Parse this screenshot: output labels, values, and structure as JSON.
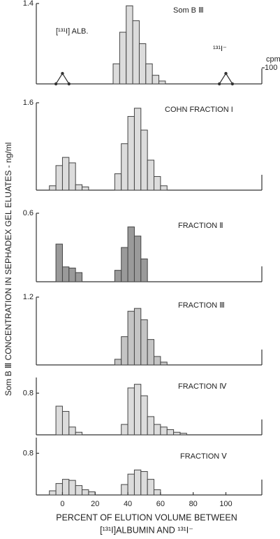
{
  "chart_data": [
    {
      "type": "histogram",
      "title": "Som B Ⅲ",
      "ylabel": "Som B Ⅲ CONCENTRATION IN SEPHADEX GEL ELUATES - ng/ml",
      "annotations": [
        "[¹³¹I] ALB.",
        "¹³¹I⁻"
      ],
      "bins": [
        31,
        35,
        39,
        43,
        47,
        51,
        55,
        59,
        63
      ],
      "values": [
        0.35,
        0.9,
        1.36,
        1.1,
        0.7,
        0.35,
        0.15,
        0.05
      ],
      "color": "#dcdcdc",
      "xlim": [
        -16,
        122
      ],
      "ylim": [
        0,
        1.4
      ],
      "yticks": [
        1.4
      ],
      "markers": {
        "x": [
          -4,
          0,
          4,
          null,
          96,
          100,
          104
        ],
        "values": [
          0,
          65,
          0,
          null,
          0,
          65,
          0
        ],
        "axis": "y2"
      },
      "y2label": "cpm",
      "y2lim": [
        0,
        500
      ],
      "y2ticks": [
        100
      ]
    },
    {
      "type": "histogram",
      "title": "COHN FRACTION I",
      "bins": [
        -8,
        -4,
        0,
        4,
        8,
        12,
        16,
        32,
        36,
        40,
        44,
        48,
        52,
        56,
        60,
        64
      ],
      "values": [
        0.08,
        0.45,
        0.6,
        0.5,
        0.1,
        0.06,
        0,
        0.3,
        0.85,
        1.35,
        1.5,
        1.1,
        0.55,
        0.25,
        0.08
      ],
      "color": "#dcdcdc",
      "xlim": [
        -16,
        122
      ],
      "ylim": [
        0,
        1.6
      ],
      "yticks": [
        1.6
      ]
    },
    {
      "type": "histogram",
      "title": "FRACTION Ⅱ",
      "bins": [
        -4,
        0,
        4,
        8,
        12,
        32,
        36,
        40,
        44,
        48,
        52
      ],
      "values": [
        0.33,
        0.13,
        0.12,
        0.08,
        0,
        0.1,
        0.3,
        0.48,
        0.4,
        0.2
      ],
      "color": "#9a9a9a",
      "xlim": [
        -16,
        122
      ],
      "ylim": [
        0,
        0.6
      ],
      "yticks": [
        0.6
      ]
    },
    {
      "type": "histogram",
      "title": "FRACTION Ⅲ",
      "bins": [
        32,
        36,
        40,
        44,
        48,
        52,
        56,
        60,
        64
      ],
      "values": [
        0.1,
        0.5,
        0.95,
        1.0,
        0.8,
        0.45,
        0.15,
        0.05
      ],
      "color": "#c4c4c4",
      "xlim": [
        -16,
        122
      ],
      "ylim": [
        0,
        1.2
      ],
      "yticks": [
        1.2
      ]
    },
    {
      "type": "histogram",
      "title": "FRACTION Ⅳ",
      "bins": [
        -4,
        0,
        4,
        8,
        12,
        36,
        40,
        44,
        48,
        52,
        56,
        60,
        64,
        68,
        72,
        76
      ],
      "values": [
        0.55,
        0.45,
        0.15,
        0.05,
        0,
        0.2,
        0.9,
        0.97,
        0.75,
        0.35,
        0.2,
        0.15,
        0.1,
        0.05,
        0.03
      ],
      "color": "#dcdcdc",
      "xlim": [
        -16,
        122
      ],
      "ylim": [
        0,
        1.1
      ],
      "yticks": [
        0.8
      ]
    },
    {
      "type": "histogram",
      "title": "FRACTION Ⅴ",
      "bins": [
        -8,
        -4,
        0,
        4,
        8,
        12,
        16,
        20,
        36,
        40,
        44,
        48,
        52,
        56,
        60
      ],
      "values": [
        0.08,
        0.22,
        0.3,
        0.28,
        0.18,
        0.1,
        0.06,
        0,
        0.2,
        0.4,
        0.48,
        0.45,
        0.3,
        0.1
      ],
      "color": "#dcdcdc",
      "xlim": [
        -16,
        122
      ],
      "ylim": [
        0,
        1.1
      ],
      "yticks": [
        0.8
      ],
      "xticks": [
        0,
        20,
        40,
        60,
        80,
        100
      ],
      "xlabel": [
        "PERCENT OF ELUTION VOLUME BETWEEN",
        "[¹³¹I]ALBUMIN AND ¹³¹I⁻"
      ]
    }
  ]
}
